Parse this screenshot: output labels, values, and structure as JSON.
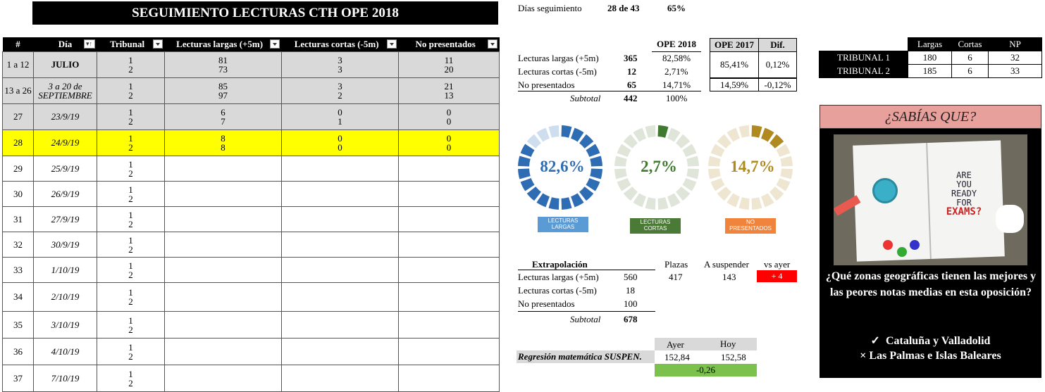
{
  "title": "SEGUIMIENTO LECTURAS CTH OPE 2018",
  "header": {
    "col_num": "#",
    "col_dia": "Día",
    "col_tribunal": "Tribunal",
    "col_largas": "Lecturas largas (+5m)",
    "col_cortas": "Lecturas cortas (-5m)",
    "col_np": "No presentados"
  },
  "rows": [
    {
      "num": "1 a 12",
      "dia": "JULIO",
      "t1": "1",
      "t2": "2",
      "l1": "81",
      "l2": "73",
      "c1": "3",
      "c2": "3",
      "n1": "11",
      "n2": "20"
    },
    {
      "num": "13 a 26",
      "dia1": "3 a 20 de",
      "dia2": "SEPTIEMBRE",
      "t1": "1",
      "t2": "2",
      "l1": "85",
      "l2": "97",
      "c1": "3",
      "c2": "2",
      "n1": "21",
      "n2": "13"
    },
    {
      "num": "27",
      "dia": "23/9/19",
      "t1": "1",
      "t2": "2",
      "l1": "6",
      "l2": "7",
      "c1": "0",
      "c2": "1",
      "n1": "0",
      "n2": "0"
    },
    {
      "num": "28",
      "dia": "24/9/19",
      "t1": "1",
      "t2": "2",
      "l1": "8",
      "l2": "8",
      "c1": "0",
      "c2": "0",
      "n1": "0",
      "n2": "0"
    },
    {
      "num": "29",
      "dia": "25/9/19",
      "t1": "1",
      "t2": "2"
    },
    {
      "num": "30",
      "dia": "26/9/19",
      "t1": "1",
      "t2": "2"
    },
    {
      "num": "31",
      "dia": "27/9/19",
      "t1": "1",
      "t2": "2"
    },
    {
      "num": "32",
      "dia": "30/9/19",
      "t1": "1",
      "t2": "2"
    },
    {
      "num": "33",
      "dia": "1/10/19",
      "t1": "1",
      "t2": "2"
    },
    {
      "num": "34",
      "dia": "2/10/19",
      "t1": "1",
      "t2": "2"
    },
    {
      "num": "35",
      "dia": "3/10/19",
      "t1": "1",
      "t2": "2"
    },
    {
      "num": "36",
      "dia": "4/10/19",
      "t1": "1",
      "t2": "2"
    },
    {
      "num": "37",
      "dia": "7/10/19",
      "t1": "1",
      "t2": "2"
    }
  ],
  "seguimiento": {
    "label": "Días seguimiento",
    "value": "28 de 43",
    "pct": "65%"
  },
  "summary": {
    "h_ope2018": "OPE 2018",
    "h_ope2017": "OPE 2017",
    "h_dif": "Dif.",
    "r1_label": "Lecturas largas  (+5m)",
    "r1_val": "365",
    "r1_pct": "82,58%",
    "r2_label": "Lecturas cortas (-5m)",
    "r2_val": "12",
    "r2_pct": "2,71%",
    "r3_label": "No presentados",
    "r3_val": "65",
    "r3_pct": "14,71%",
    "sub_label": "Subtotal",
    "sub_val": "442",
    "sub_pct": "100%",
    "ope2017_a": "85,41%",
    "dif_a": "0,12%",
    "ope2017_b": "14,59%",
    "dif_b": "-0,12%"
  },
  "tribunales": {
    "h_largas": "Largas",
    "h_cortas": "Cortas",
    "h_np": "NP",
    "t1": {
      "name": "TRIBUNAL 1",
      "largas": "180",
      "cortas": "6",
      "np": "32"
    },
    "t2": {
      "name": "TRIBUNAL 2",
      "largas": "185",
      "cortas": "6",
      "np": "33"
    }
  },
  "donuts": [
    {
      "label": "82,6%",
      "caption1": "LECTURAS",
      "caption2": "LARGAS",
      "fraction": 0.826,
      "color": "#2e6db4",
      "light": "#cfdeef",
      "caption_bg": "#5b9bd5",
      "text_color": "#2e6db4"
    },
    {
      "label": "2,7%",
      "caption1": "LECTURAS",
      "caption2": "CORTAS",
      "fraction": 0.027,
      "color": "#3f7a2e",
      "light": "#dfe5d9",
      "caption_bg": "#4a7a36",
      "text_color": "#3f7a2e"
    },
    {
      "label": "14,7%",
      "caption1": "NO",
      "caption2": "PRESENTADOS",
      "fraction": 0.147,
      "color": "#b08a1e",
      "light": "#efe6d2",
      "caption_bg": "#f0843c",
      "text_color": "#b08a1e"
    }
  ],
  "extrapolacion": {
    "title": "Extrapolación",
    "h_plazas": "Plazas",
    "h_suspender": "A suspender",
    "h_vsayer": "vs ayer",
    "r1_label": "Lecturas largas (+5m)",
    "r1_val": "560",
    "plazas": "417",
    "suspender": "143",
    "vsayer": "+ 4",
    "r2_label": "Lecturas cortas (-5m)",
    "r2_val": "18",
    "r3_label": "No presentados",
    "r3_val": "100",
    "sub_label": "Subtotal",
    "sub_val": "678"
  },
  "regresion": {
    "label": "Regresión matemática SUSPEN.",
    "h_ayer": "Ayer",
    "h_hoy": "Hoy",
    "ayer": "152,84",
    "hoy": "152,58",
    "diff": "-0,26"
  },
  "sabias": {
    "title": "¿SABÍAS QUE?",
    "question": "¿Qué zonas geográficas tienen las mejores y las peores notas medias en esta oposición?",
    "best_mark": "✓",
    "best": "Cataluña y Valladolid",
    "worst_mark": "×",
    "worst": "Las Palmas e Islas Baleares",
    "image_text1": "ARE",
    "image_text2": "YOU",
    "image_text3": "READY",
    "image_text4": "FOR",
    "image_text5": "EXAMS?"
  },
  "colors": {
    "grey": "#d9d9d9",
    "yellow": "#ffff00",
    "red": "#ff0000",
    "green": "#7cc04e",
    "pink": "#e8a09c"
  }
}
